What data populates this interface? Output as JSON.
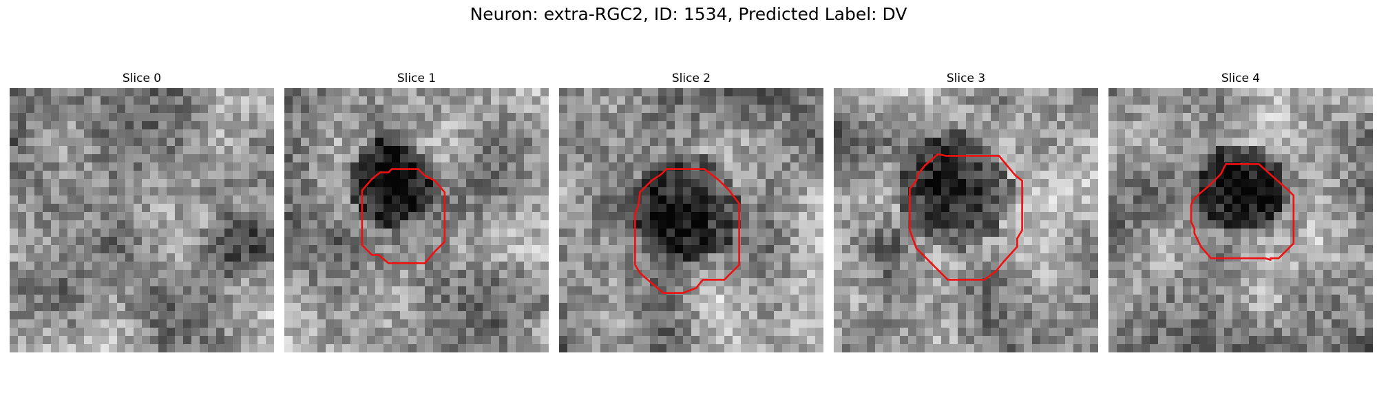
{
  "figure": {
    "title": "Neuron: extra-RGC2, ID: 1534, Predicted Label: DV"
  },
  "panels": [
    {
      "title": "Slice 0",
      "has_outline": false
    },
    {
      "title": "Slice 1",
      "has_outline": true
    },
    {
      "title": "Slice 2",
      "has_outline": true
    },
    {
      "title": "Slice 3",
      "has_outline": true
    },
    {
      "title": "Slice 4",
      "has_outline": true
    }
  ],
  "colors": {
    "outline": "#ee1111",
    "background": "#ffffff"
  },
  "image_style": "grayscale pixel noise, 32x32 grid per slice"
}
